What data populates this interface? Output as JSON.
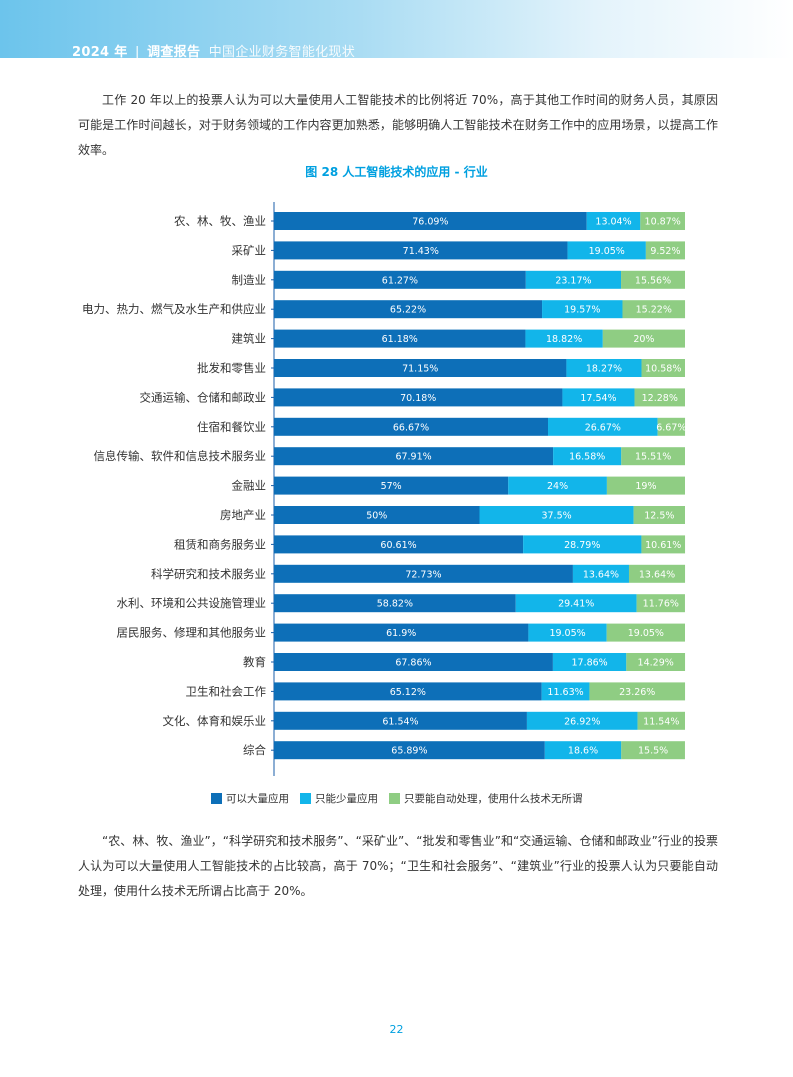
{
  "header": {
    "year": "2024 年",
    "separator": "|",
    "kind": "调查报告",
    "subtitle": "中国企业财务智能化现状"
  },
  "paragraphs": {
    "intro": "工作 20 年以上的投票人认为可以大量使用人工智能技术的比例将近 70%，高于其他工作时间的财务人员，其原因可能是工作时间越长，对于财务领域的工作内容更加熟悉，能够明确人工智能技术在财务工作中的应用场景，以提高工作效率。",
    "conclusion": "“农、林、牧、渔业”，“科学研究和技术服务”、“采矿业”、“批发和零售业”和“交通运输、仓储和邮政业”行业的投票人认为可以大量使用人工智能技术的占比较高，高于 70%；“卫生和社会服务”、“建筑业”行业的投票人认为只要能自动处理，使用什么技术无所谓占比高于 20%。"
  },
  "page_number": "22",
  "chart_data": {
    "type": "bar",
    "orientation": "horizontal",
    "stacked": true,
    "title": "图 28 人工智能技术的应用 - 行业",
    "categories": [
      "农、林、牧、渔业",
      "采矿业",
      "制造业",
      "电力、热力、燃气及水生产和供应业",
      "建筑业",
      "批发和零售业",
      "交通运输、仓储和邮政业",
      "住宿和餐饮业",
      "信息传输、软件和信息技术服务业",
      "金融业",
      "房地产业",
      "租赁和商务服务业",
      "科学研究和技术服务业",
      "水利、环境和公共设施管理业",
      "居民服务、修理和其他服务业",
      "教育",
      "卫生和社会工作",
      "文化、体育和娱乐业",
      "综合"
    ],
    "series": [
      {
        "name": "可以大量使用",
        "color": "#0d6fb8",
        "values": [
          76.09,
          71.43,
          61.27,
          65.22,
          61.18,
          71.15,
          70.18,
          66.67,
          67.91,
          57,
          50,
          60.61,
          72.73,
          58.82,
          61.9,
          67.86,
          65.12,
          61.54,
          65.89
        ],
        "labels": [
          "76.09%",
          "71.43%",
          "61.27%",
          "65.22%",
          "61.18%",
          "71.15%",
          "70.18%",
          "66.67%",
          "67.91%",
          "57%",
          "50%",
          "60.61%",
          "72.73%",
          "58.82%",
          "61.9%",
          "67.86%",
          "65.12%",
          "61.54%",
          "65.89%"
        ]
      },
      {
        "name": "只能少量应用",
        "color": "#12b5ea",
        "values": [
          13.04,
          19.05,
          23.17,
          19.57,
          18.82,
          18.27,
          17.54,
          26.67,
          16.58,
          24,
          37.5,
          28.79,
          13.64,
          29.41,
          19.05,
          17.86,
          11.63,
          26.92,
          18.6
        ],
        "labels": [
          "13.04%",
          "19.05%",
          "23.17%",
          "19.57%",
          "18.82%",
          "18.27%",
          "17.54%",
          "26.67%",
          "16.58%",
          "24%",
          "37.5%",
          "28.79%",
          "13.64%",
          "29.41%",
          "19.05%",
          "17.86%",
          "11.63%",
          "26.92%",
          "18.6%"
        ]
      },
      {
        "name": "只要能自动处理，使用什么技术无所谓",
        "color": "#8fcd83",
        "values": [
          10.87,
          9.52,
          15.56,
          15.22,
          20,
          10.58,
          12.28,
          6.67,
          15.51,
          19,
          12.5,
          10.61,
          13.64,
          11.76,
          19.05,
          14.29,
          23.26,
          11.54,
          15.5
        ],
        "labels": [
          "10.87%",
          "9.52%",
          "15.56%",
          "15.22%",
          "20%",
          "10.58%",
          "12.28%",
          "6.67%",
          "15.51%",
          "19%",
          "12.5%",
          "10.61%",
          "13.64%",
          "11.76%",
          "19.05%",
          "14.29%",
          "23.26%",
          "11.54%",
          "15.5%"
        ]
      }
    ],
    "xlim": [
      0,
      100
    ],
    "grid": false,
    "legend_position": "bottom"
  },
  "legend": [
    {
      "label": "可以大量应用",
      "color": "#0d6fb8"
    },
    {
      "label": "只能少量应用",
      "color": "#12b5ea"
    },
    {
      "label": "只要能自动处理，使用什么技术无所谓",
      "color": "#8fcd83"
    }
  ]
}
